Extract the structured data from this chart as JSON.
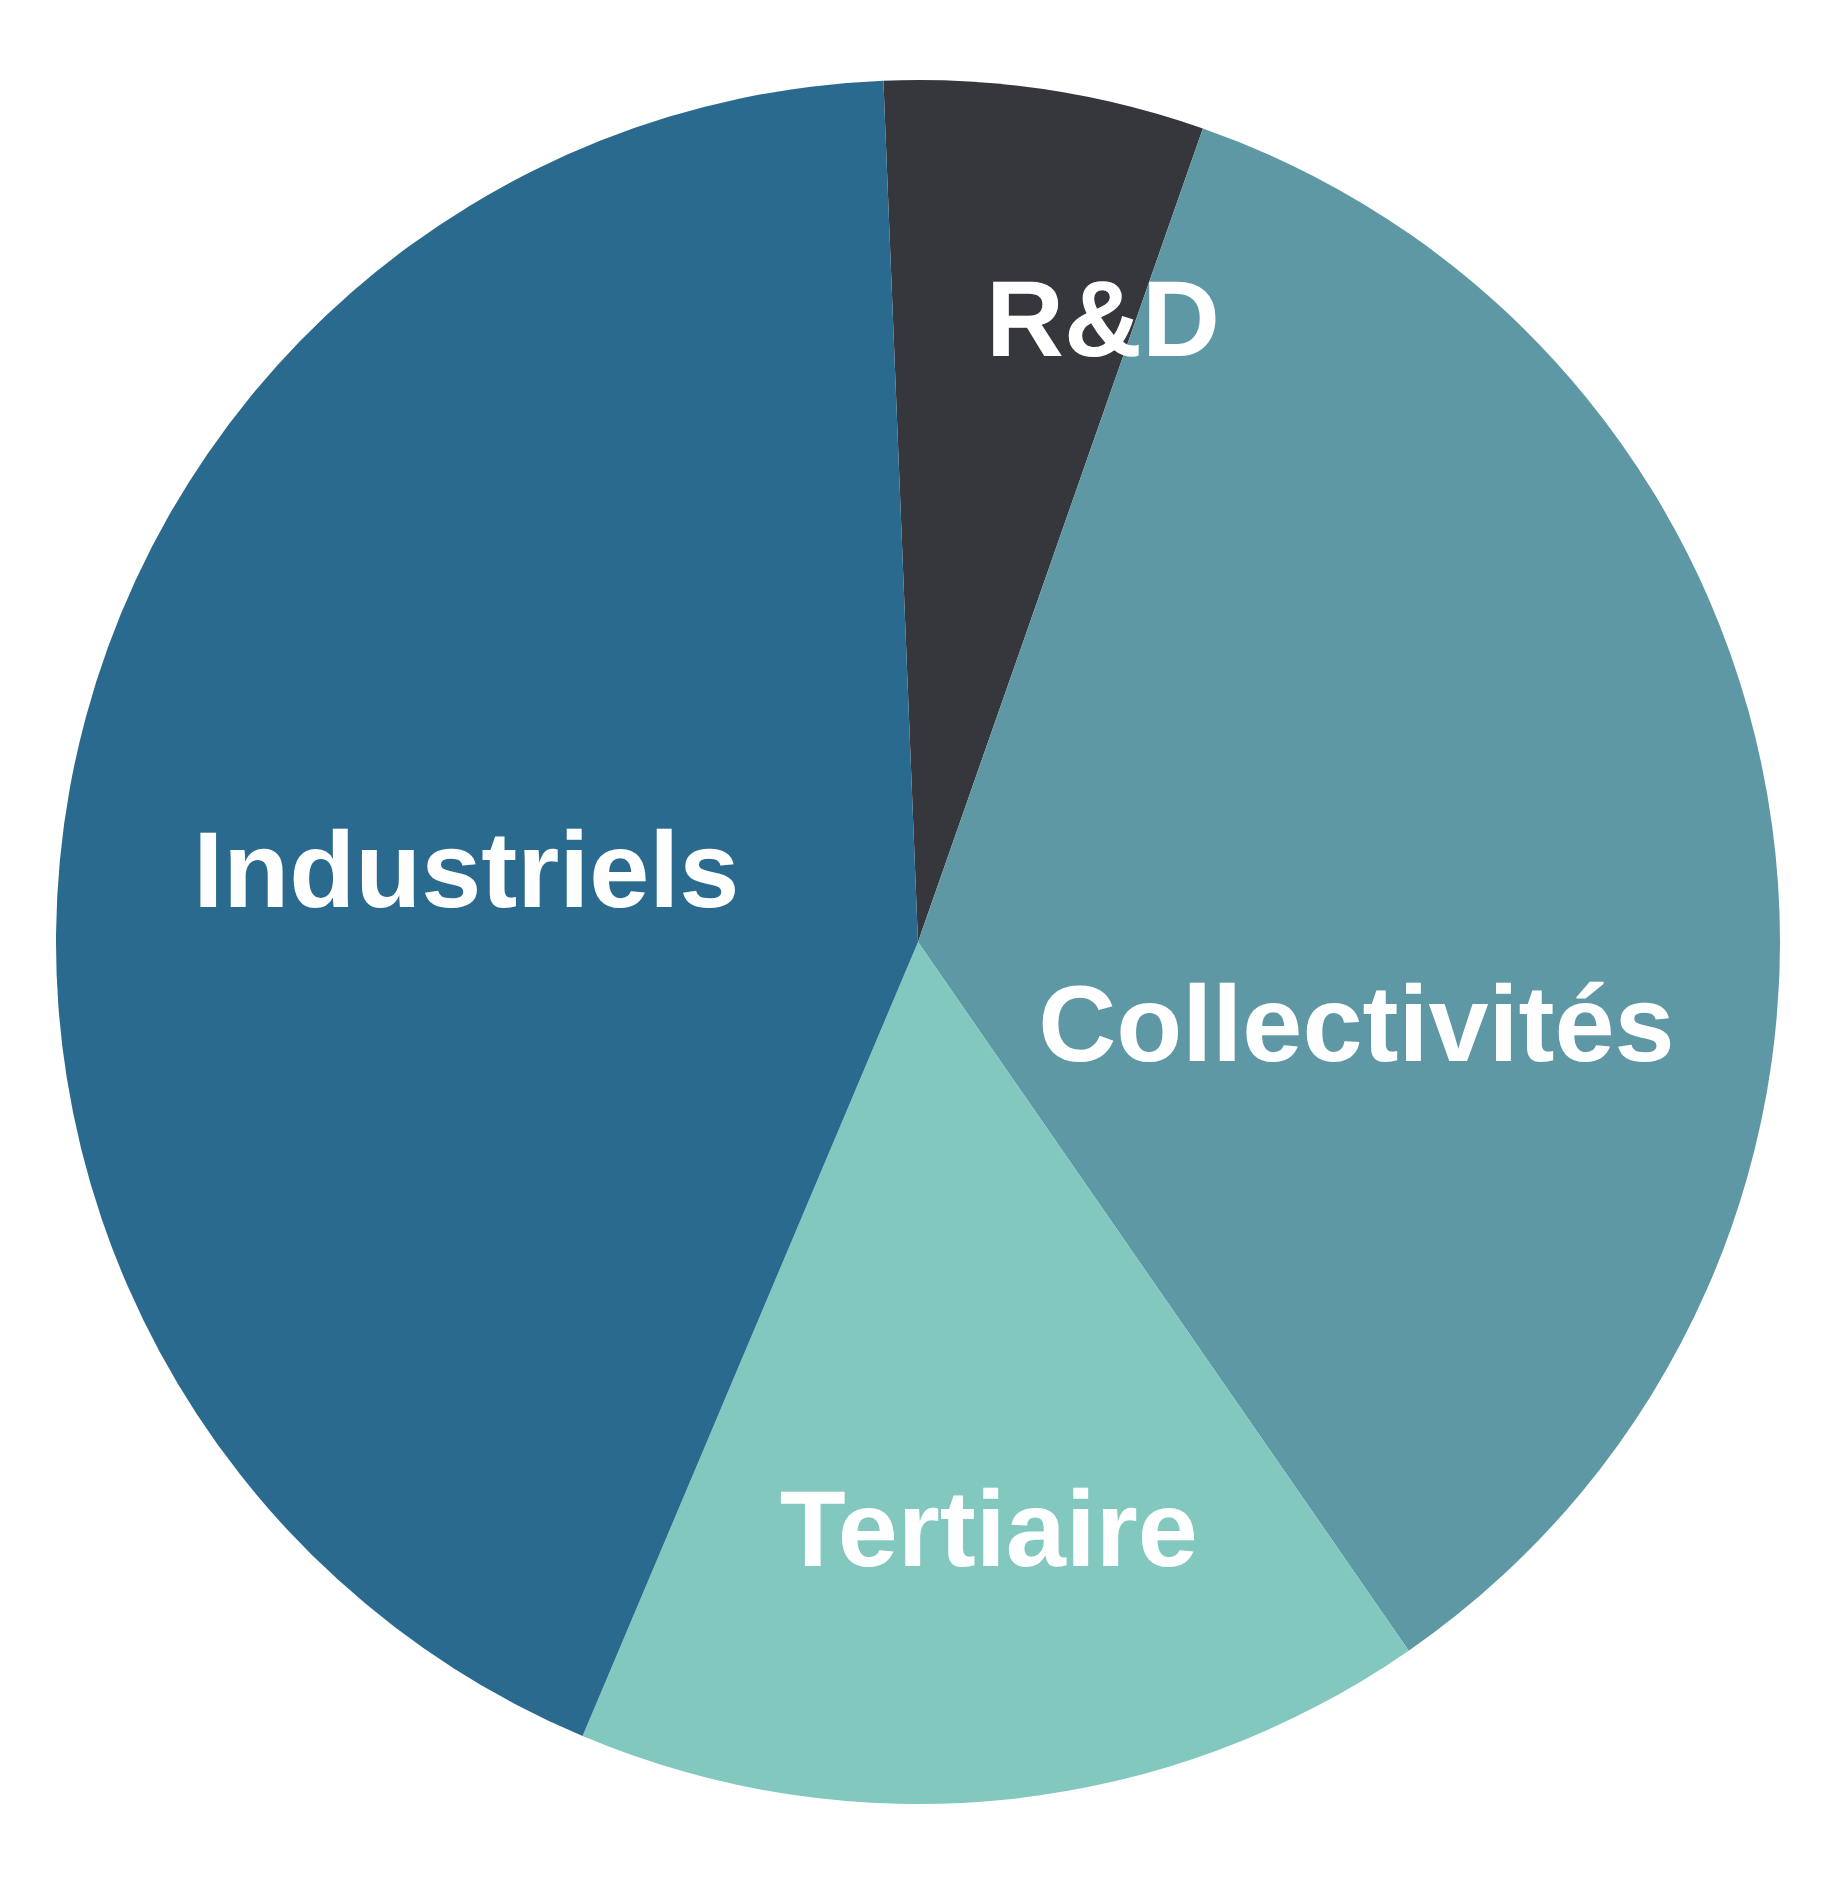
{
  "chart_data": {
    "type": "pie",
    "categories": [
      "R&D",
      "Collectivités",
      "Tertiaire",
      "Industriels"
    ],
    "values": [
      6,
      35,
      16,
      43
    ],
    "colors": [
      "#35373d",
      "#5e98a5",
      "#82c8bf",
      "#2b6a8f"
    ]
  }
}
